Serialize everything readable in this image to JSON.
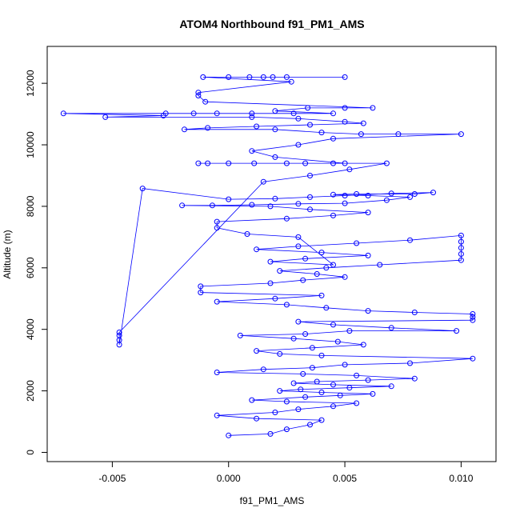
{
  "chart_data": {
    "type": "scatter",
    "title": "ATOM4 Northbound f91_PM1_AMS",
    "xlabel": "f91_PM1_AMS",
    "ylabel": "Altitude (m)",
    "xlim": [
      -0.0078,
      0.0115
    ],
    "ylim": [
      -300,
      13200
    ],
    "x_ticks": [
      -0.005,
      0.0,
      0.005,
      0.01
    ],
    "x_tick_labels": [
      "-0.005",
      "0.000",
      "0.005",
      "0.010"
    ],
    "y_ticks": [
      0,
      2000,
      4000,
      6000,
      8000,
      10000,
      12000
    ],
    "y_tick_labels": [
      "0",
      "2000",
      "4000",
      "6000",
      "8000",
      "10000",
      "12000"
    ],
    "marker": "open-circle",
    "connected": true,
    "color": "#0000ff",
    "series": [
      {
        "name": "f91_PM1_AMS",
        "points": [
          [
            0.0,
            550
          ],
          [
            0.0018,
            600
          ],
          [
            0.0025,
            750
          ],
          [
            0.0035,
            900
          ],
          [
            0.004,
            1050
          ],
          [
            0.0012,
            1100
          ],
          [
            -0.0005,
            1200
          ],
          [
            0.002,
            1300
          ],
          [
            0.003,
            1400
          ],
          [
            0.0045,
            1500
          ],
          [
            0.0055,
            1600
          ],
          [
            0.0025,
            1650
          ],
          [
            0.001,
            1700
          ],
          [
            0.0033,
            1800
          ],
          [
            0.0048,
            1850
          ],
          [
            0.0062,
            1900
          ],
          [
            0.004,
            1950
          ],
          [
            0.0022,
            2000
          ],
          [
            0.0031,
            2050
          ],
          [
            0.0052,
            2100
          ],
          [
            0.007,
            2150
          ],
          [
            0.0045,
            2200
          ],
          [
            0.0028,
            2250
          ],
          [
            0.0038,
            2300
          ],
          [
            0.006,
            2350
          ],
          [
            0.008,
            2400
          ],
          [
            0.0055,
            2500
          ],
          [
            0.0032,
            2550
          ],
          [
            -0.0005,
            2600
          ],
          [
            0.0015,
            2700
          ],
          [
            0.0036,
            2750
          ],
          [
            0.005,
            2850
          ],
          [
            0.0078,
            2900
          ],
          [
            0.0105,
            3050
          ],
          [
            0.004,
            3150
          ],
          [
            0.0022,
            3200
          ],
          [
            0.0012,
            3300
          ],
          [
            0.0036,
            3400
          ],
          [
            0.0058,
            3500
          ],
          [
            0.0047,
            3600
          ],
          [
            0.0028,
            3700
          ],
          [
            0.0005,
            3800
          ],
          [
            0.0033,
            3850
          ],
          [
            0.0052,
            3950
          ],
          [
            0.0098,
            3950
          ],
          [
            0.007,
            4050
          ],
          [
            0.0045,
            4150
          ],
          [
            0.003,
            4250
          ],
          [
            0.0105,
            4300
          ],
          [
            0.0105,
            4400
          ],
          [
            0.0105,
            4500
          ],
          [
            0.008,
            4550
          ],
          [
            0.006,
            4600
          ],
          [
            0.0042,
            4700
          ],
          [
            0.0025,
            4800
          ],
          [
            -0.0005,
            4900
          ],
          [
            0.002,
            5000
          ],
          [
            0.004,
            5100
          ],
          [
            -0.0012,
            5200
          ],
          [
            -0.0012,
            5400
          ],
          [
            0.0018,
            5500
          ],
          [
            0.0032,
            5600
          ],
          [
            0.005,
            5700
          ],
          [
            0.0038,
            5800
          ],
          [
            0.0022,
            5900
          ],
          [
            0.0042,
            6000
          ],
          [
            0.0065,
            6100
          ],
          [
            0.01,
            6250
          ],
          [
            0.01,
            6450
          ],
          [
            0.01,
            6650
          ],
          [
            0.01,
            6850
          ],
          [
            0.01,
            7050
          ],
          [
            0.0078,
            6900
          ],
          [
            0.0055,
            6800
          ],
          [
            0.003,
            6700
          ],
          [
            0.0012,
            6600
          ],
          [
            0.004,
            6500
          ],
          [
            0.006,
            6400
          ],
          [
            0.0033,
            6300
          ],
          [
            0.0018,
            6200
          ],
          [
            0.0045,
            6100
          ],
          [
            0.003,
            7000
          ],
          [
            0.0008,
            7100
          ],
          [
            -0.0005,
            7300
          ],
          [
            -0.0005,
            7500
          ],
          [
            0.0025,
            7600
          ],
          [
            0.0045,
            7700
          ],
          [
            0.006,
            7800
          ],
          [
            0.0035,
            7900
          ],
          [
            0.0018,
            8000
          ],
          [
            -0.002,
            8030
          ],
          [
            -0.0007,
            8030
          ],
          [
            0.001,
            8050
          ],
          [
            0.003,
            8080
          ],
          [
            0.005,
            8100
          ],
          [
            0.0068,
            8200
          ],
          [
            0.0078,
            8300
          ],
          [
            0.006,
            8350
          ],
          [
            0.0045,
            8380
          ],
          [
            0.0055,
            8400
          ],
          [
            0.008,
            8400
          ],
          [
            0.0088,
            8450
          ],
          [
            0.007,
            8420
          ],
          [
            0.005,
            8350
          ],
          [
            0.0035,
            8300
          ],
          [
            0.002,
            8250
          ],
          [
            0.0,
            8230
          ],
          [
            -0.0037,
            8580
          ],
          [
            -0.0047,
            3500
          ],
          [
            -0.0047,
            3650
          ],
          [
            -0.0047,
            3800
          ],
          [
            -0.0047,
            3900
          ],
          [
            0.0015,
            8800
          ],
          [
            0.0035,
            9000
          ],
          [
            0.0052,
            9200
          ],
          [
            0.0068,
            9400
          ],
          [
            0.0045,
            9400
          ],
          [
            0.0025,
            9400
          ],
          [
            0.0,
            9400
          ],
          [
            -0.0013,
            9400
          ],
          [
            -0.0009,
            9400
          ],
          [
            0.0011,
            9400
          ],
          [
            0.0033,
            9400
          ],
          [
            0.005,
            9400
          ],
          [
            0.002,
            9600
          ],
          [
            0.001,
            9800
          ],
          [
            0.003,
            10000
          ],
          [
            0.0045,
            10200
          ],
          [
            0.01,
            10350
          ],
          [
            0.0073,
            10350
          ],
          [
            0.0057,
            10350
          ],
          [
            0.004,
            10400
          ],
          [
            0.002,
            10500
          ],
          [
            -0.0019,
            10500
          ],
          [
            -0.0009,
            10550
          ],
          [
            0.0012,
            10600
          ],
          [
            0.0035,
            10650
          ],
          [
            0.0058,
            10700
          ],
          [
            0.005,
            10750
          ],
          [
            0.003,
            10850
          ],
          [
            0.001,
            10900
          ],
          [
            -0.0053,
            10900
          ],
          [
            -0.0028,
            10950
          ],
          [
            -0.0071,
            11020
          ],
          [
            -0.0027,
            11020
          ],
          [
            -0.0015,
            11020
          ],
          [
            -0.0005,
            11020
          ],
          [
            0.001,
            11020
          ],
          [
            0.0028,
            11020
          ],
          [
            0.0045,
            11020
          ],
          [
            0.002,
            11100
          ],
          [
            0.0034,
            11200
          ],
          [
            0.005,
            11200
          ],
          [
            0.0062,
            11200
          ],
          [
            -0.001,
            11400
          ],
          [
            -0.0013,
            11600
          ],
          [
            -0.0013,
            11700
          ],
          [
            0.0027,
            12050
          ],
          [
            -0.0011,
            12200
          ],
          [
            0.0,
            12200
          ],
          [
            0.0009,
            12200
          ],
          [
            0.0015,
            12200
          ],
          [
            0.0019,
            12200
          ],
          [
            0.0025,
            12200
          ],
          [
            0.005,
            12200
          ]
        ]
      }
    ]
  }
}
